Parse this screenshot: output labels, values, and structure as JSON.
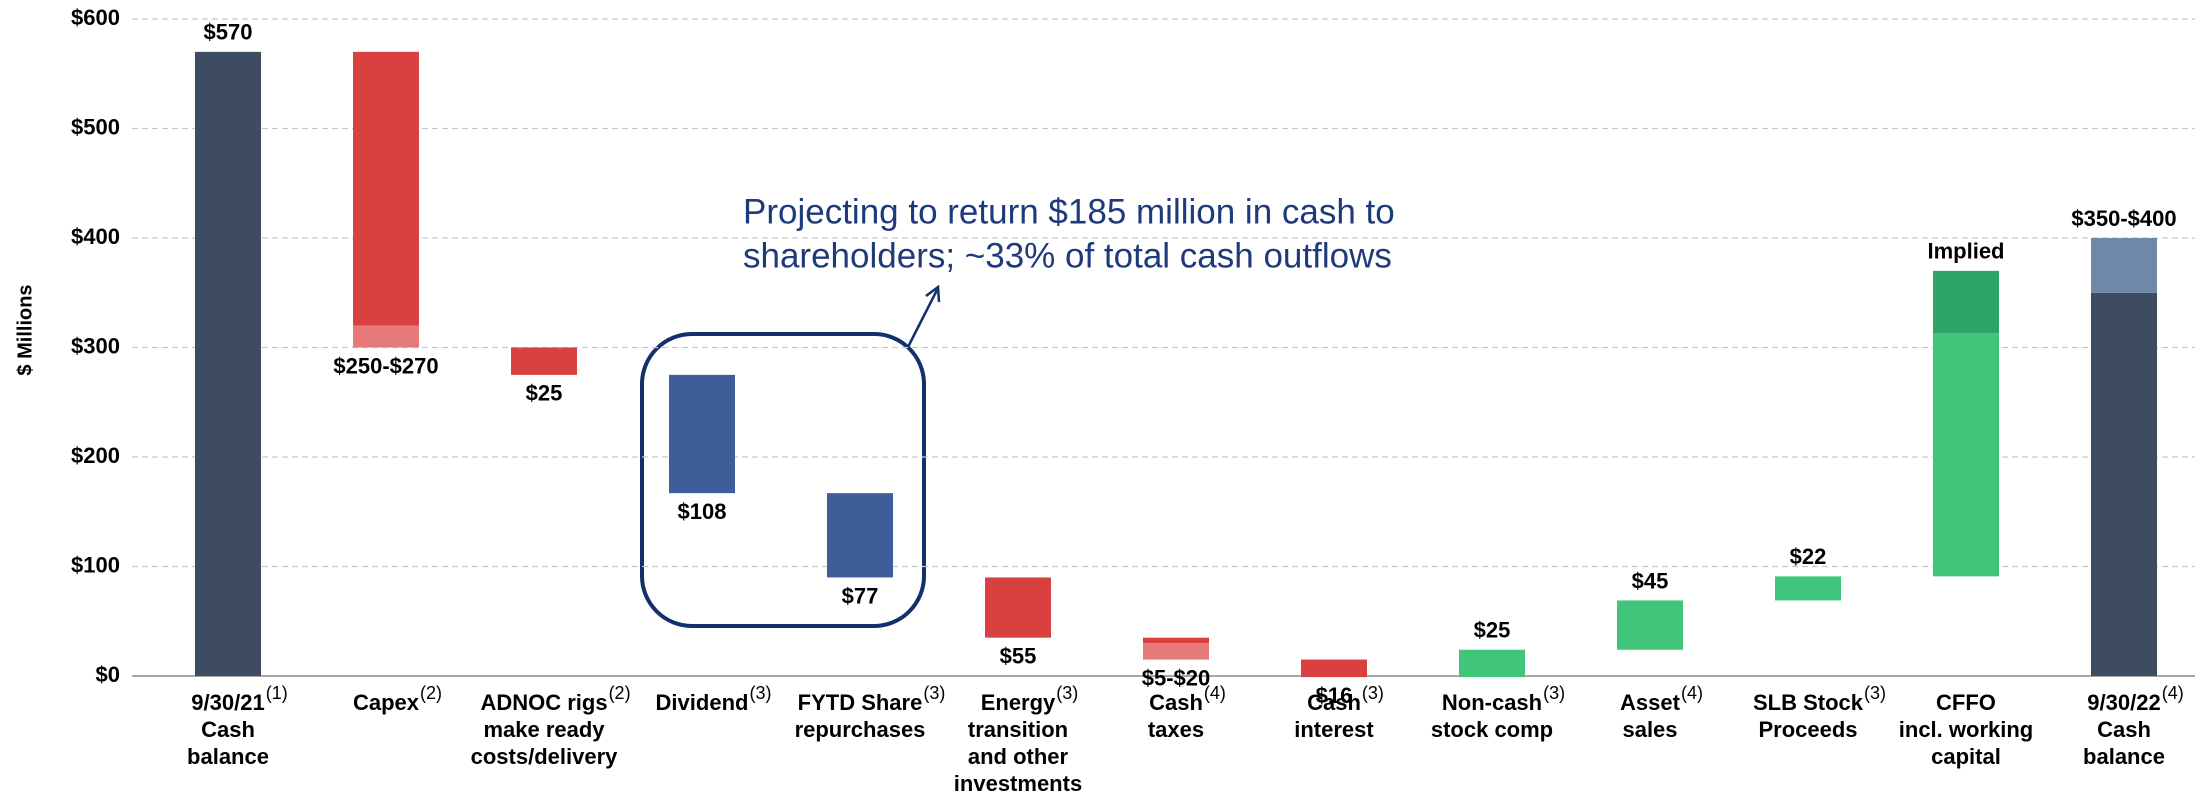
{
  "chart_data": {
    "type": "waterfall",
    "y_label": "$ Millions",
    "categories": [
      [
        "9/30/21",
        "Cash",
        "balance"
      ],
      [
        "Capex"
      ],
      [
        "ADNOC rigs",
        "make ready",
        "costs/delivery"
      ],
      [
        "Dividend"
      ],
      [
        "FYTD Share",
        "repurchases"
      ],
      [
        "Energy",
        "transition",
        "and other",
        "investments"
      ],
      [
        "Cash",
        "taxes"
      ],
      [
        "Cash",
        "interest"
      ],
      [
        "Non-cash",
        "stock comp"
      ],
      [
        "Asset",
        "sales"
      ],
      [
        "SLB Stock",
        "Proceeds"
      ],
      [
        "CFFO",
        "incl. working",
        "capital"
      ],
      [
        "9/30/22",
        "Cash",
        "balance"
      ]
    ],
    "notes": [
      "(1)",
      "(2)",
      "(2)",
      "(3)",
      "(3)",
      "(3)",
      "(4)",
      "(3)",
      "(3)",
      "(4)",
      "(3)",
      null,
      "(4)"
    ],
    "kinds": [
      "total",
      "decrease",
      "decrease",
      "return",
      "return",
      "decrease",
      "decrease",
      "decrease",
      "increase",
      "increase",
      "increase",
      "increase",
      "total"
    ],
    "values": [
      570,
      250,
      25,
      108,
      77,
      55,
      5,
      16,
      25,
      45,
      22,
      222,
      350
    ],
    "range_high": [
      null,
      270,
      null,
      null,
      null,
      null,
      20,
      null,
      null,
      null,
      null,
      279,
      400
    ],
    "value_labels": [
      "$570",
      "$250-$270",
      "$25",
      "$108",
      "$77",
      "$55",
      "$5-$20",
      "$16",
      "$25",
      "$45",
      "$22",
      null,
      "$350-$400"
    ],
    "implied_label": "Implied",
    "colors": {
      "total": "#3e4c62",
      "total_range": "#7088a8",
      "decrease": "#d94040",
      "decrease_range": "#e67a7a",
      "return": "#3d5e98",
      "increase": "#40c57a",
      "increase_range": "#2ea466"
    },
    "annotation": [
      "Projecting to return $185 million in cash to",
      "shareholders; ~33% of total cash outflows"
    ],
    "ylim": [
      0,
      600
    ],
    "yticks": [
      {
        "value": 0,
        "label": "$0"
      },
      {
        "value": 100,
        "label": "$100"
      },
      {
        "value": 200,
        "label": "$200"
      },
      {
        "value": 300,
        "label": "$300"
      },
      {
        "value": 400,
        "label": "$400"
      },
      {
        "value": 500,
        "label": "$500"
      },
      {
        "value": 600,
        "label": "$600"
      }
    ],
    "grid": true
  }
}
